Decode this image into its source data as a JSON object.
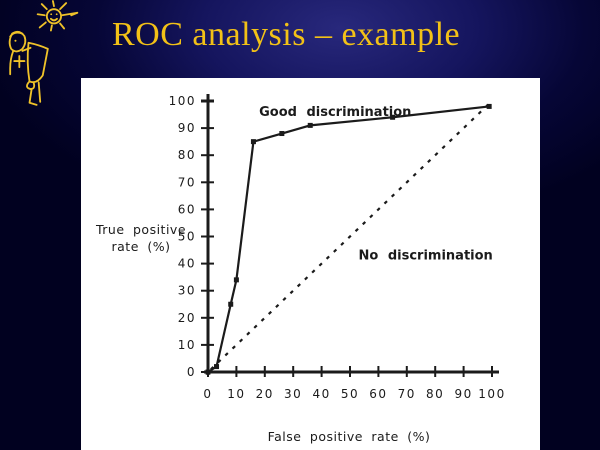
{
  "slide": {
    "title": "ROC analysis – example",
    "title_color": "#F2C117",
    "doodle_icon": "person-reading-under-sun-doodle"
  },
  "chart_data": {
    "type": "line",
    "title": "",
    "xlabel": "False positive rate (%)",
    "ylabel": "True positive rate (%)",
    "ylabel_lines": [
      "True positive",
      "rate  (%)"
    ],
    "xlim": [
      0,
      100
    ],
    "ylim": [
      0,
      100
    ],
    "x_ticks": [
      "0",
      "10",
      "20",
      "30",
      "40",
      "50",
      "60",
      "70",
      "80",
      "90",
      "100"
    ],
    "y_ticks": [
      "100",
      "90",
      "80",
      "70",
      "60",
      "50",
      "40",
      "30",
      "20",
      "10",
      "0"
    ],
    "grid": false,
    "legend": "inline-annotations",
    "ink_color": "#1b1b1b",
    "panel_bg": "#ffffff",
    "series": [
      {
        "name": "Good discrimination",
        "line": "solid",
        "marker": "square",
        "points": [
          [
            0,
            0
          ],
          [
            3,
            2
          ],
          [
            8,
            25
          ],
          [
            10,
            34
          ],
          [
            16,
            85
          ],
          [
            26,
            88
          ],
          [
            36,
            91
          ],
          [
            65,
            94
          ],
          [
            99,
            98
          ]
        ]
      },
      {
        "name": "No discrimination",
        "line": "dotted",
        "marker": "none",
        "points": [
          [
            1,
            1
          ],
          [
            100,
            100
          ]
        ]
      }
    ],
    "annotations": [
      {
        "text": "Good discrimination",
        "x": 18,
        "y": 96,
        "weight": 600
      },
      {
        "text": "No discrimination",
        "x": 53,
        "y": 43,
        "weight": 700
      }
    ]
  }
}
